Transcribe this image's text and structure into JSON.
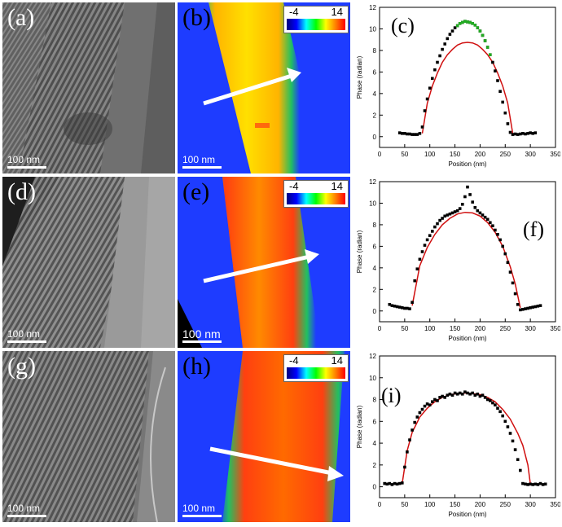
{
  "rows": [
    {
      "tem": {
        "label": "(a)",
        "scale": "100 nm"
      },
      "phase": {
        "label": "(b)",
        "scale": "100 nm",
        "cbar_min": "-4",
        "cbar_max": "14"
      },
      "profile": {
        "label": "(c)"
      }
    },
    {
      "tem": {
        "label": "(d)",
        "scale": "100 nm"
      },
      "phase": {
        "label": "(e)",
        "scale": "100 nm",
        "cbar_min": "-4",
        "cbar_max": "14"
      },
      "profile": {
        "label": "(f)"
      }
    },
    {
      "tem": {
        "label": "(g)",
        "scale": "100 nm"
      },
      "phase": {
        "label": "(h)",
        "scale": "100 nm",
        "cbar_min": "-4",
        "cbar_max": "14"
      },
      "profile": {
        "label": "(i)"
      }
    }
  ],
  "colors": {
    "fit_line": "#d01010",
    "measured_points": "#000000",
    "excess_points": "#22aa22",
    "arrow": "#ffffff",
    "phase_background": "#1e3cff"
  },
  "chart_data": [
    {
      "type": "scatter",
      "panel": "(c)",
      "xlabel": "Position (nm)",
      "ylabel": "Phase (radian)",
      "xlim": [
        0,
        350
      ],
      "ylim": [
        -1,
        12
      ],
      "xticks": [
        0,
        50,
        100,
        150,
        200,
        250,
        300,
        350
      ],
      "yticks": [
        0,
        2,
        4,
        6,
        8,
        10,
        12
      ],
      "series": [
        {
          "kind": "points",
          "color": "#000000",
          "x": [
            40,
            45,
            50,
            55,
            60,
            65,
            70,
            75,
            80,
            85,
            90,
            95,
            100,
            105,
            110,
            115,
            120,
            125,
            130,
            135,
            140,
            145,
            150,
            155,
            160,
            165,
            170,
            175,
            180,
            185,
            190,
            195,
            200,
            205,
            210,
            215,
            220,
            225,
            230,
            235,
            240,
            245,
            250,
            255,
            260,
            265,
            270,
            275,
            280,
            285,
            290,
            295,
            300,
            305,
            310
          ],
          "y": [
            0.35,
            0.3,
            0.3,
            0.25,
            0.25,
            0.2,
            0.2,
            0.2,
            0.3,
            0.9,
            2.4,
            3.5,
            4.5,
            5.4,
            6.2,
            6.9,
            7.5,
            8.1,
            8.6,
            9.1,
            9.5,
            9.8,
            10.1,
            10.3,
            10.5,
            10.6,
            10.7,
            10.65,
            10.6,
            10.5,
            10.35,
            10.1,
            9.8,
            9.4,
            8.9,
            8.3,
            7.6,
            6.9,
            6.1,
            5.2,
            4.2,
            3.2,
            2.2,
            1.2,
            0.4,
            0.2,
            0.25,
            0.2,
            0.25,
            0.3,
            0.25,
            0.3,
            0.35,
            0.3,
            0.35
          ]
        },
        {
          "kind": "points",
          "color": "#22aa22",
          "x": [
            155,
            160,
            165,
            170,
            175,
            180,
            185,
            190,
            195,
            200,
            205,
            210,
            215,
            220
          ],
          "y": [
            10.3,
            10.5,
            10.6,
            10.7,
            10.65,
            10.6,
            10.5,
            10.35,
            10.1,
            9.8,
            9.4,
            8.9,
            8.3,
            7.6
          ]
        },
        {
          "kind": "fit",
          "color": "#d01010",
          "x": [
            85,
            95,
            105,
            115,
            125,
            135,
            145,
            155,
            165,
            175,
            185,
            195,
            205,
            215,
            225,
            235,
            245,
            255,
            265
          ],
          "y": [
            0.3,
            3.1,
            4.7,
            5.9,
            6.9,
            7.6,
            8.1,
            8.5,
            8.7,
            8.75,
            8.7,
            8.5,
            8.1,
            7.6,
            6.9,
            5.9,
            4.7,
            3.1,
            0.3
          ]
        }
      ]
    },
    {
      "type": "scatter",
      "panel": "(f)",
      "xlabel": "Position (nm)",
      "ylabel": "Phase (radian)",
      "xlim": [
        0,
        350
      ],
      "ylim": [
        -1,
        12
      ],
      "xticks": [
        0,
        50,
        100,
        150,
        200,
        250,
        300,
        350
      ],
      "yticks": [
        0,
        2,
        4,
        6,
        8,
        10,
        12
      ],
      "series": [
        {
          "kind": "points",
          "color": "#000000",
          "x": [
            20,
            25,
            30,
            35,
            40,
            45,
            50,
            55,
            60,
            65,
            70,
            75,
            80,
            85,
            90,
            95,
            100,
            105,
            110,
            115,
            120,
            125,
            130,
            135,
            140,
            145,
            150,
            155,
            160,
            165,
            170,
            175,
            180,
            185,
            190,
            195,
            200,
            205,
            210,
            215,
            220,
            225,
            230,
            235,
            240,
            245,
            250,
            255,
            260,
            265,
            270,
            275,
            280,
            285,
            290,
            295,
            300,
            305,
            310,
            315,
            320
          ],
          "y": [
            0.6,
            0.5,
            0.45,
            0.4,
            0.35,
            0.3,
            0.25,
            0.25,
            0.2,
            0.8,
            2.8,
            3.9,
            4.8,
            5.5,
            6.1,
            6.6,
            7.0,
            7.4,
            7.8,
            8.1,
            8.4,
            8.6,
            8.8,
            8.9,
            9.0,
            9.1,
            9.2,
            9.3,
            9.5,
            9.9,
            10.6,
            11.5,
            10.8,
            10.1,
            9.6,
            9.3,
            9.1,
            8.9,
            8.7,
            8.5,
            8.2,
            7.9,
            7.5,
            7.1,
            6.6,
            6.0,
            5.3,
            4.5,
            3.6,
            2.6,
            1.6,
            0.6,
            0.1,
            0.15,
            0.2,
            0.25,
            0.3,
            0.35,
            0.4,
            0.45,
            0.5
          ]
        },
        {
          "kind": "fit",
          "color": "#d01010",
          "x": [
            65,
            80,
            95,
            110,
            125,
            140,
            155,
            170,
            185,
            200,
            215,
            230,
            245,
            260,
            270,
            280
          ],
          "y": [
            0.5,
            4.2,
            5.9,
            7.1,
            8.0,
            8.6,
            9.0,
            9.15,
            9.1,
            8.8,
            8.2,
            7.3,
            6.0,
            4.1,
            2.5,
            0.3
          ]
        }
      ]
    },
    {
      "type": "scatter",
      "panel": "(i)",
      "xlabel": "Position (nm)",
      "ylabel": "Phase (radian)",
      "xlim": [
        0,
        350
      ],
      "ylim": [
        -1,
        12
      ],
      "xticks": [
        0,
        50,
        100,
        150,
        200,
        250,
        300,
        350
      ],
      "yticks": [
        0,
        2,
        4,
        6,
        8,
        10,
        12
      ],
      "series": [
        {
          "kind": "points",
          "color": "#000000",
          "x": [
            10,
            15,
            20,
            25,
            30,
            35,
            40,
            45,
            50,
            55,
            60,
            65,
            70,
            75,
            80,
            85,
            90,
            95,
            100,
            105,
            110,
            115,
            120,
            125,
            130,
            135,
            140,
            145,
            150,
            155,
            160,
            165,
            170,
            175,
            180,
            185,
            190,
            195,
            200,
            205,
            210,
            215,
            220,
            225,
            230,
            235,
            240,
            245,
            250,
            255,
            260,
            265,
            270,
            275,
            280,
            285,
            290,
            295,
            300,
            305,
            310,
            315,
            320,
            325,
            330
          ],
          "y": [
            0.3,
            0.25,
            0.3,
            0.2,
            0.3,
            0.25,
            0.3,
            0.35,
            1.8,
            3.2,
            4.3,
            5.2,
            5.9,
            6.4,
            6.8,
            7.1,
            7.4,
            7.6,
            7.5,
            7.8,
            8.0,
            7.9,
            8.2,
            8.3,
            8.2,
            8.4,
            8.5,
            8.4,
            8.6,
            8.5,
            8.6,
            8.5,
            8.7,
            8.6,
            8.5,
            8.6,
            8.4,
            8.5,
            8.3,
            8.4,
            8.2,
            8.0,
            7.9,
            7.7,
            7.5,
            7.2,
            6.9,
            6.5,
            6.0,
            5.5,
            4.9,
            4.2,
            3.4,
            2.5,
            1.5,
            0.3,
            0.25,
            0.2,
            0.25,
            0.2,
            0.25,
            0.2,
            0.3,
            0.2,
            0.25
          ]
        },
        {
          "kind": "fit",
          "color": "#d01010",
          "x": [
            45,
            55,
            65,
            80,
            95,
            110,
            125,
            140,
            155,
            170,
            185,
            200,
            215,
            230,
            245,
            260,
            275,
            285,
            295,
            300
          ],
          "y": [
            0.3,
            3.3,
            5.0,
            6.4,
            7.2,
            7.8,
            8.2,
            8.45,
            8.55,
            8.6,
            8.55,
            8.45,
            8.2,
            7.8,
            7.1,
            6.2,
            4.9,
            3.8,
            2.0,
            0.3
          ]
        }
      ]
    }
  ]
}
